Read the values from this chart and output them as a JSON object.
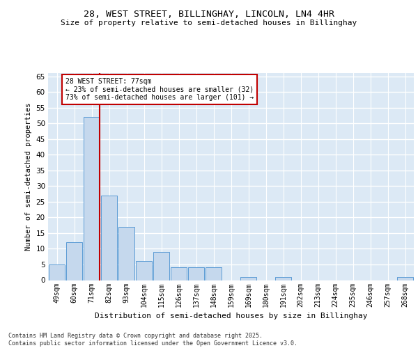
{
  "title1": "28, WEST STREET, BILLINGHAY, LINCOLN, LN4 4HR",
  "title2": "Size of property relative to semi-detached houses in Billinghay",
  "xlabel": "Distribution of semi-detached houses by size in Billinghay",
  "ylabel": "Number of semi-detached properties",
  "categories": [
    "49sqm",
    "60sqm",
    "71sqm",
    "82sqm",
    "93sqm",
    "104sqm",
    "115sqm",
    "126sqm",
    "137sqm",
    "148sqm",
    "159sqm",
    "169sqm",
    "180sqm",
    "191sqm",
    "202sqm",
    "213sqm",
    "224sqm",
    "235sqm",
    "246sqm",
    "257sqm",
    "268sqm"
  ],
  "values": [
    5,
    12,
    52,
    27,
    17,
    6,
    9,
    4,
    4,
    4,
    0,
    1,
    0,
    1,
    0,
    0,
    0,
    0,
    0,
    0,
    1
  ],
  "bar_color": "#c5d8ed",
  "bar_edge_color": "#5b9bd5",
  "bg_color": "#dce9f5",
  "grid_color": "#ffffff",
  "vline_color": "#c00000",
  "annotation_text": "28 WEST STREET: 77sqm\n← 23% of semi-detached houses are smaller (32)\n73% of semi-detached houses are larger (101) →",
  "annotation_box_color": "#ffffff",
  "annotation_box_edge": "#c00000",
  "footer": "Contains HM Land Registry data © Crown copyright and database right 2025.\nContains public sector information licensed under the Open Government Licence v3.0.",
  "ylim": [
    0,
    66
  ],
  "yticks": [
    0,
    5,
    10,
    15,
    20,
    25,
    30,
    35,
    40,
    45,
    50,
    55,
    60,
    65
  ]
}
